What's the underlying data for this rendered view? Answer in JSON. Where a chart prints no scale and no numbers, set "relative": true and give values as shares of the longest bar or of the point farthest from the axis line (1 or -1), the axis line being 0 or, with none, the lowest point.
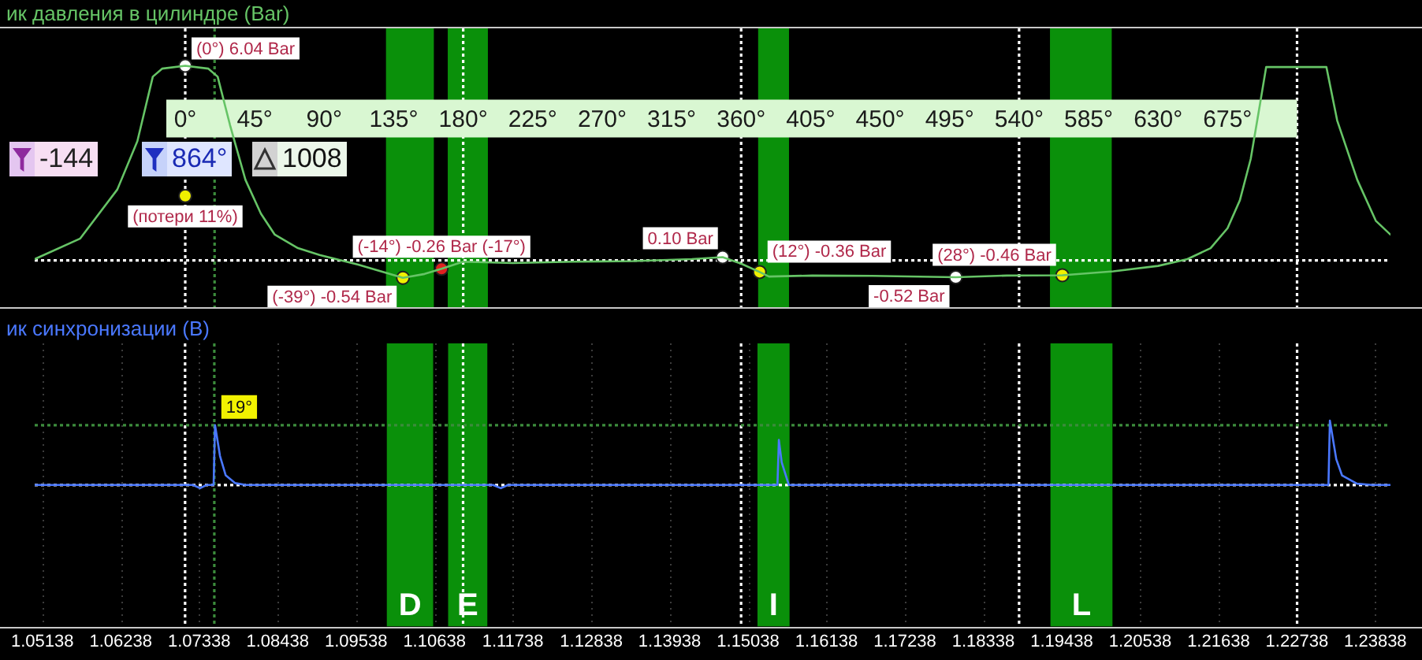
{
  "chart_data": [
    {
      "type": "line",
      "title": "ик давления в цилиндре (Bar)",
      "xlim": [
        -97.5,
        780.5
      ],
      "xticks": [
        {
          "value": 0,
          "label": "0°"
        },
        {
          "value": 45,
          "label": "45°"
        },
        {
          "value": 90,
          "label": "90°"
        },
        {
          "value": 135,
          "label": "135°"
        },
        {
          "value": 180,
          "label": "180°"
        },
        {
          "value": 225,
          "label": "225°"
        },
        {
          "value": 270,
          "label": "270°"
        },
        {
          "value": 315,
          "label": "315°"
        },
        {
          "value": 360,
          "label": "360°"
        },
        {
          "value": 405,
          "label": "405°"
        },
        {
          "value": 450,
          "label": "450°"
        },
        {
          "value": 495,
          "label": "495°"
        },
        {
          "value": 540,
          "label": "540°"
        },
        {
          "value": 585,
          "label": "585°"
        },
        {
          "value": 630,
          "label": "630°"
        },
        {
          "value": 675,
          "label": "675°"
        }
      ],
      "ylim": [
        -1.45,
        7.2
      ],
      "tick_labels": "x",
      "series": [
        {
          "type": "line",
          "color": "#66c466",
          "x": [
            -97.5,
            -68,
            -44,
            -31,
            -21,
            -15,
            0,
            15,
            21,
            29,
            39,
            49,
            58,
            73,
            87,
            112,
            141,
            155,
            166,
            180,
            212,
            251,
            290,
            328,
            348,
            360,
            372,
            378,
            406,
            445,
            499,
            532,
            568,
            601,
            630,
            649,
            664,
            675,
            683,
            690,
            696,
            700,
            739,
            746,
            759,
            771,
            780.5
          ],
          "values": [
            0.04,
            0.68,
            2.2,
            3.7,
            5.7,
            5.95,
            6.04,
            5.95,
            5.7,
            4.2,
            2.5,
            1.45,
            0.8,
            0.38,
            0.17,
            -0.13,
            -0.54,
            -0.42,
            -0.26,
            -0.04,
            -0.08,
            -0.04,
            -0.02,
            0.04,
            0.1,
            -0.1,
            -0.36,
            -0.5,
            -0.47,
            -0.48,
            -0.52,
            -0.47,
            -0.46,
            -0.34,
            -0.17,
            0.04,
            0.38,
            1.0,
            1.87,
            3.15,
            4.85,
            6.0,
            6.0,
            4.34,
            2.5,
            1.23,
            0.8
          ]
        },
        {
          "type": "scatter",
          "marker": "circle",
          "x": [
            0,
            0,
            141,
            166,
            348,
            372,
            499,
            568
          ],
          "values": [
            6.04,
            2.0,
            -0.54,
            -0.26,
            0.1,
            -0.36,
            -0.52,
            -0.46
          ],
          "colors": [
            "#ffffff",
            "#f0f000",
            "#f0f000",
            "#e02020",
            "#ffffff",
            "#f0f000",
            "#ffffff",
            "#f0f000"
          ],
          "value_labels": [
            "(0°) 6.04 Bar",
            "(потери 11%)",
            "(-39°) -0.54 Bar",
            "(-14°) -0.26 Bar (-17°)",
            "0.10 Bar",
            "(12°) -0.36 Bar",
            "-0.52 Bar",
            "(28°) -0.46 Bar"
          ]
        }
      ],
      "bands": [
        {
          "axis": "x",
          "from": 130,
          "to": 161,
          "color": "#0a900a"
        },
        {
          "axis": "x",
          "from": 170,
          "to": 196,
          "color": "#0a900a"
        },
        {
          "axis": "x",
          "from": 371,
          "to": 391,
          "color": "#0a900a"
        },
        {
          "axis": "x",
          "from": 560,
          "to": 600,
          "color": "#0a900a"
        }
      ],
      "ref_lines": [
        {
          "axis": "x",
          "value": 0,
          "color": "#ffffff",
          "line_style": "dotted"
        },
        {
          "axis": "x",
          "value": 180,
          "color": "#ffffff",
          "line_style": "dotted"
        },
        {
          "axis": "x",
          "value": 360,
          "color": "#ffffff",
          "line_style": "dotted"
        },
        {
          "axis": "x",
          "value": 540,
          "color": "#ffffff",
          "line_style": "dotted"
        },
        {
          "axis": "x",
          "value": 720,
          "color": "#ffffff",
          "line_style": "dotted"
        },
        {
          "axis": "x",
          "value": 19,
          "color": "#3c8c3c",
          "line_style": "dotted"
        },
        {
          "axis": "y",
          "value": 0,
          "color": "#ffffff",
          "line_style": "dotted"
        }
      ],
      "annotations": [
        "-144",
        "864°",
        "1008"
      ]
    },
    {
      "type": "line",
      "title": "ик синхронизации (В)",
      "relative": true,
      "xlim": [
        1.0503,
        1.2405
      ],
      "xticks": [
        1.05138,
        1.06238,
        1.07338,
        1.08438,
        1.09538,
        1.10638,
        1.11738,
        1.12838,
        1.13938,
        1.15038,
        1.16138,
        1.17238,
        1.18338,
        1.19438,
        1.20538,
        1.21638,
        1.22738,
        1.23838
      ],
      "tick_labels": "x",
      "grid": "x",
      "series": [
        {
          "color": "#4a78ff",
          "x": [
            1.0503,
            1.0725,
            1.0735,
            1.0744,
            1.0754,
            1.0756,
            1.0763,
            1.0771,
            1.0784,
            1.0799,
            1.1146,
            1.1157,
            1.1167,
            1.1545,
            1.1547,
            1.1551,
            1.1561,
            1.2318,
            1.232,
            1.2329,
            1.2337,
            1.2358,
            1.2379,
            1.2405
          ],
          "values": [
            0,
            0,
            -0.05,
            0,
            0,
            0.93,
            0.45,
            0.15,
            0.03,
            0,
            0,
            -0.05,
            0,
            0,
            0.7,
            0.35,
            0,
            0,
            1.0,
            0.4,
            0.15,
            0.02,
            0,
            0
          ]
        }
      ],
      "bands": [
        {
          "axis": "x",
          "from": 1.0997,
          "to": 1.1062,
          "label": "D",
          "color": "#0a900a"
        },
        {
          "axis": "x",
          "from": 1.1083,
          "to": 1.1138,
          "label": "E",
          "color": "#0a900a"
        },
        {
          "axis": "x",
          "from": 1.1517,
          "to": 1.1562,
          "label": "I",
          "color": "#0a900a"
        },
        {
          "axis": "x",
          "from": 1.1928,
          "to": 1.2015,
          "label": "L",
          "color": "#0a900a"
        }
      ],
      "ref_lines": [
        {
          "axis": "x",
          "value": 1.0714,
          "color": "#ffffff",
          "line_style": "dotted"
        },
        {
          "axis": "x",
          "value": 1.1104,
          "color": "#ffffff",
          "line_style": "dotted"
        },
        {
          "axis": "x",
          "value": 1.1494,
          "color": "#ffffff",
          "line_style": "dotted"
        },
        {
          "axis": "x",
          "value": 1.1884,
          "color": "#ffffff",
          "line_style": "dotted"
        },
        {
          "axis": "x",
          "value": 1.2274,
          "color": "#ffffff",
          "line_style": "dotted"
        },
        {
          "axis": "x",
          "value": 1.0755,
          "color": "#3c8c3c",
          "line_style": "dotted"
        },
        {
          "axis": "y",
          "value": 0,
          "color": "#ffffff",
          "line_style": "dotted"
        },
        {
          "axis": "y",
          "value": 0.93,
          "color": "#3c8c3c",
          "line_style": "dotted"
        }
      ],
      "annotations": [
        {
          "text": "19°",
          "x": 1.0756,
          "y": 0.93
        }
      ]
    }
  ]
}
